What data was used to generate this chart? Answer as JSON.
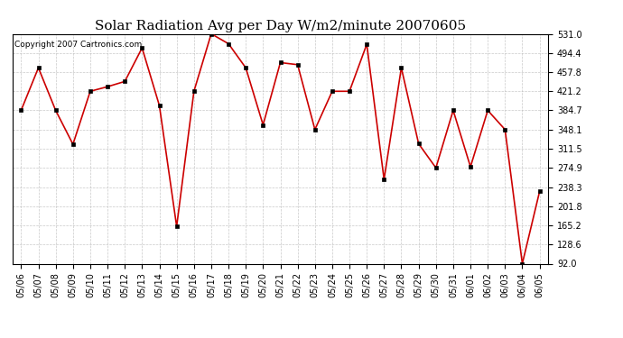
{
  "title": "Solar Radiation Avg per Day W/m2/minute 20070605",
  "copyright": "Copyright 2007 Cartronics.com",
  "dates": [
    "05/06",
    "05/07",
    "05/08",
    "05/09",
    "05/10",
    "05/11",
    "05/12",
    "05/13",
    "05/14",
    "05/15",
    "05/16",
    "05/17",
    "05/18",
    "05/19",
    "05/20",
    "05/21",
    "05/22",
    "05/23",
    "05/24",
    "05/25",
    "05/26",
    "05/27",
    "05/28",
    "05/29",
    "05/30",
    "05/31",
    "06/01",
    "06/02",
    "06/03",
    "06/04",
    "06/05"
  ],
  "values": [
    384.7,
    466.0,
    384.7,
    320.0,
    421.2,
    430.0,
    440.0,
    504.0,
    394.0,
    163.0,
    421.2,
    531.0,
    512.0,
    466.0,
    357.0,
    476.0,
    472.0,
    348.1,
    421.2,
    421.2,
    511.0,
    253.0,
    466.0,
    321.0,
    275.0,
    384.7,
    277.0,
    384.7,
    348.1,
    92.0,
    230.0
  ],
  "yticks": [
    531.0,
    494.4,
    457.8,
    421.2,
    384.7,
    348.1,
    311.5,
    274.9,
    238.3,
    201.8,
    165.2,
    128.6,
    92.0
  ],
  "ymin": 92.0,
  "ymax": 531.0,
  "line_color": "#cc0000",
  "background_color": "#ffffff",
  "grid_color": "#bbbbbb",
  "title_fontsize": 11,
  "copyright_fontsize": 6.5,
  "tick_fontsize": 7,
  "ytick_fontsize": 7
}
